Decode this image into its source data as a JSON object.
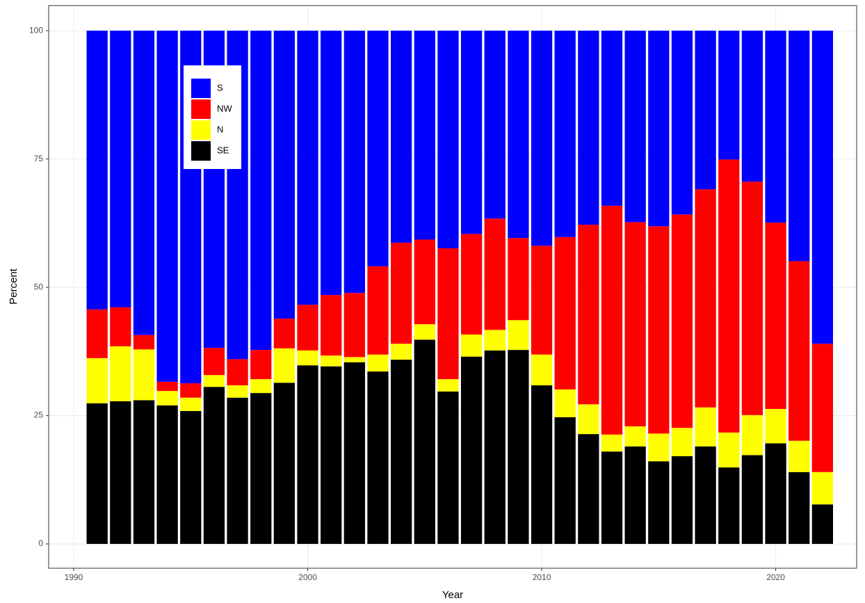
{
  "chart_data": {
    "type": "stacked-bar",
    "x_label": "Year",
    "y_label": "Percent",
    "categories": [
      1991,
      1992,
      1993,
      1994,
      1995,
      1996,
      1997,
      1998,
      1999,
      2000,
      2001,
      2002,
      2003,
      2004,
      2005,
      2006,
      2007,
      2008,
      2009,
      2010,
      2011,
      2012,
      2013,
      2014,
      2015,
      2016,
      2017,
      2018,
      2019,
      2020,
      2021,
      2022
    ],
    "series": [
      {
        "name": "S",
        "color": "#0000ff",
        "values": [
          54.3,
          53.9,
          59.3,
          68.4,
          68.7,
          61.8,
          64.0,
          62.2,
          56.1,
          53.4,
          51.5,
          51.1,
          45.9,
          41.3,
          40.7,
          42.4,
          39.6,
          36.6,
          40.4,
          41.9,
          40.2,
          37.8,
          34.1,
          37.3,
          38.1,
          35.8,
          30.9,
          25.1,
          29.4,
          37.4,
          44.9,
          61.0
        ]
      },
      {
        "name": "NW",
        "color": "#ff0000",
        "values": [
          9.5,
          7.6,
          2.8,
          1.8,
          2.8,
          5.3,
          5.1,
          5.7,
          5.8,
          8.9,
          11.8,
          12.5,
          17.2,
          19.7,
          16.5,
          25.5,
          19.6,
          21.7,
          16.0,
          21.2,
          29.7,
          35.0,
          44.6,
          39.8,
          40.4,
          41.6,
          42.5,
          53.2,
          45.5,
          36.3,
          35.0,
          25.0
        ]
      },
      {
        "name": "N",
        "color": "#ffff00",
        "values": [
          8.8,
          10.7,
          9.9,
          2.8,
          2.6,
          2.3,
          2.4,
          2.7,
          6.7,
          2.9,
          2.1,
          1.0,
          3.3,
          3.1,
          3.0,
          2.4,
          4.3,
          4.0,
          5.8,
          6.0,
          5.4,
          5.8,
          3.3,
          3.9,
          5.4,
          5.5,
          7.6,
          6.8,
          7.8,
          6.7,
          6.1,
          6.3
        ]
      },
      {
        "name": "SE",
        "color": "#000000",
        "values": [
          27.4,
          27.8,
          28.0,
          27.0,
          25.9,
          30.6,
          28.5,
          29.4,
          31.4,
          34.8,
          34.6,
          35.4,
          33.6,
          35.9,
          39.8,
          29.7,
          36.5,
          37.7,
          37.8,
          30.9,
          24.7,
          21.4,
          18.0,
          19.0,
          16.1,
          17.1,
          19.0,
          14.9,
          17.3,
          19.6,
          14.0,
          7.7
        ]
      }
    ],
    "xlim": [
      1988.93,
      2023.46
    ],
    "xticks": [
      1990,
      2000,
      2010,
      2020
    ],
    "ylim": [
      -4.74,
      104.9
    ],
    "yticks": [
      0,
      25,
      50,
      75,
      100
    ],
    "grid": true,
    "legend": "top-left"
  }
}
